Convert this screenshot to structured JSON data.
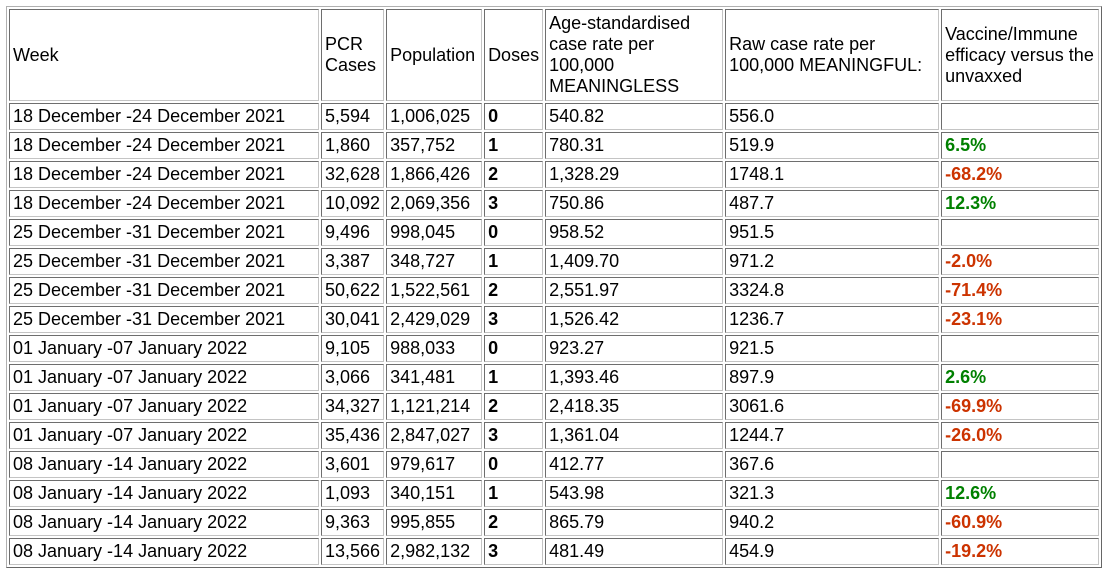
{
  "table": {
    "columns": [
      "week",
      "pcr_cases",
      "population",
      "doses",
      "age_std_rate",
      "raw_rate",
      "efficacy"
    ],
    "headers": [
      "Week",
      "PCR Cases",
      "Population",
      "Doses",
      "Age-standardised case rate per 100,000 MEANINGLESS",
      "Raw case rate per 100,000 MEANINGFUL:",
      "Vaccine/Immune efficacy versus the unvaxxed"
    ],
    "rows": [
      {
        "week": "18 December -24 December 2021",
        "pcr_cases": "5,594",
        "population": "1,006,025",
        "doses": "0",
        "age_std_rate": "540.82",
        "raw_rate": "556.0",
        "efficacy": ""
      },
      {
        "week": "18 December -24 December 2021",
        "pcr_cases": "1,860",
        "population": "357,752",
        "doses": "1",
        "age_std_rate": "780.31",
        "raw_rate": "519.9",
        "efficacy": "6.5%"
      },
      {
        "week": "18 December -24 December 2021",
        "pcr_cases": "32,628",
        "population": "1,866,426",
        "doses": "2",
        "age_std_rate": "1,328.29",
        "raw_rate": "1748.1",
        "efficacy": "-68.2%"
      },
      {
        "week": "18 December -24 December 2021",
        "pcr_cases": "10,092",
        "population": "2,069,356",
        "doses": "3",
        "age_std_rate": "750.86",
        "raw_rate": "487.7",
        "efficacy": "12.3%"
      },
      {
        "week": "25 December -31 December 2021",
        "pcr_cases": "9,496",
        "population": "998,045",
        "doses": "0",
        "age_std_rate": "958.52",
        "raw_rate": "951.5",
        "efficacy": ""
      },
      {
        "week": "25 December -31 December 2021",
        "pcr_cases": "3,387",
        "population": "348,727",
        "doses": "1",
        "age_std_rate": "1,409.70",
        "raw_rate": "971.2",
        "efficacy": "-2.0%"
      },
      {
        "week": "25 December -31 December 2021",
        "pcr_cases": "50,622",
        "population": "1,522,561",
        "doses": "2",
        "age_std_rate": "2,551.97",
        "raw_rate": "3324.8",
        "efficacy": "-71.4%"
      },
      {
        "week": "25 December -31 December 2021",
        "pcr_cases": "30,041",
        "population": "2,429,029",
        "doses": "3",
        "age_std_rate": "1,526.42",
        "raw_rate": "1236.7",
        "efficacy": "-23.1%"
      },
      {
        "week": "01 January -07 January 2022",
        "pcr_cases": "9,105",
        "population": "988,033",
        "doses": "0",
        "age_std_rate": "923.27",
        "raw_rate": "921.5",
        "efficacy": ""
      },
      {
        "week": "01 January -07 January 2022",
        "pcr_cases": "3,066",
        "population": "341,481",
        "doses": "1",
        "age_std_rate": "1,393.46",
        "raw_rate": "897.9",
        "efficacy": "2.6%"
      },
      {
        "week": "01 January -07 January 2022",
        "pcr_cases": "34,327",
        "population": "1,121,214",
        "doses": "2",
        "age_std_rate": "2,418.35",
        "raw_rate": "3061.6",
        "efficacy": "-69.9%"
      },
      {
        "week": "01 January -07 January 2022",
        "pcr_cases": "35,436",
        "population": "2,847,027",
        "doses": "3",
        "age_std_rate": "1,361.04",
        "raw_rate": "1244.7",
        "efficacy": "-26.0%"
      },
      {
        "week": "08 January -14 January 2022",
        "pcr_cases": "3,601",
        "population": "979,617",
        "doses": "0",
        "age_std_rate": "412.77",
        "raw_rate": "367.6",
        "efficacy": ""
      },
      {
        "week": "08 January -14 January 2022",
        "pcr_cases": "1,093",
        "population": "340,151",
        "doses": "1",
        "age_std_rate": "543.98",
        "raw_rate": "321.3",
        "efficacy": "12.6%"
      },
      {
        "week": "08 January -14 January 2022",
        "pcr_cases": "9,363",
        "population": "995,855",
        "doses": "2",
        "age_std_rate": "865.79",
        "raw_rate": "940.2",
        "efficacy": "-60.9%"
      },
      {
        "week": "08 January -14 January 2022",
        "pcr_cases": "13,566",
        "population": "2,982,132",
        "doses": "3",
        "age_std_rate": "481.49",
        "raw_rate": "454.9",
        "efficacy": "-19.2%"
      }
    ]
  },
  "colors": {
    "positive_efficacy": "#008000",
    "negative_efficacy": "#cc3300",
    "text": "#000000"
  }
}
